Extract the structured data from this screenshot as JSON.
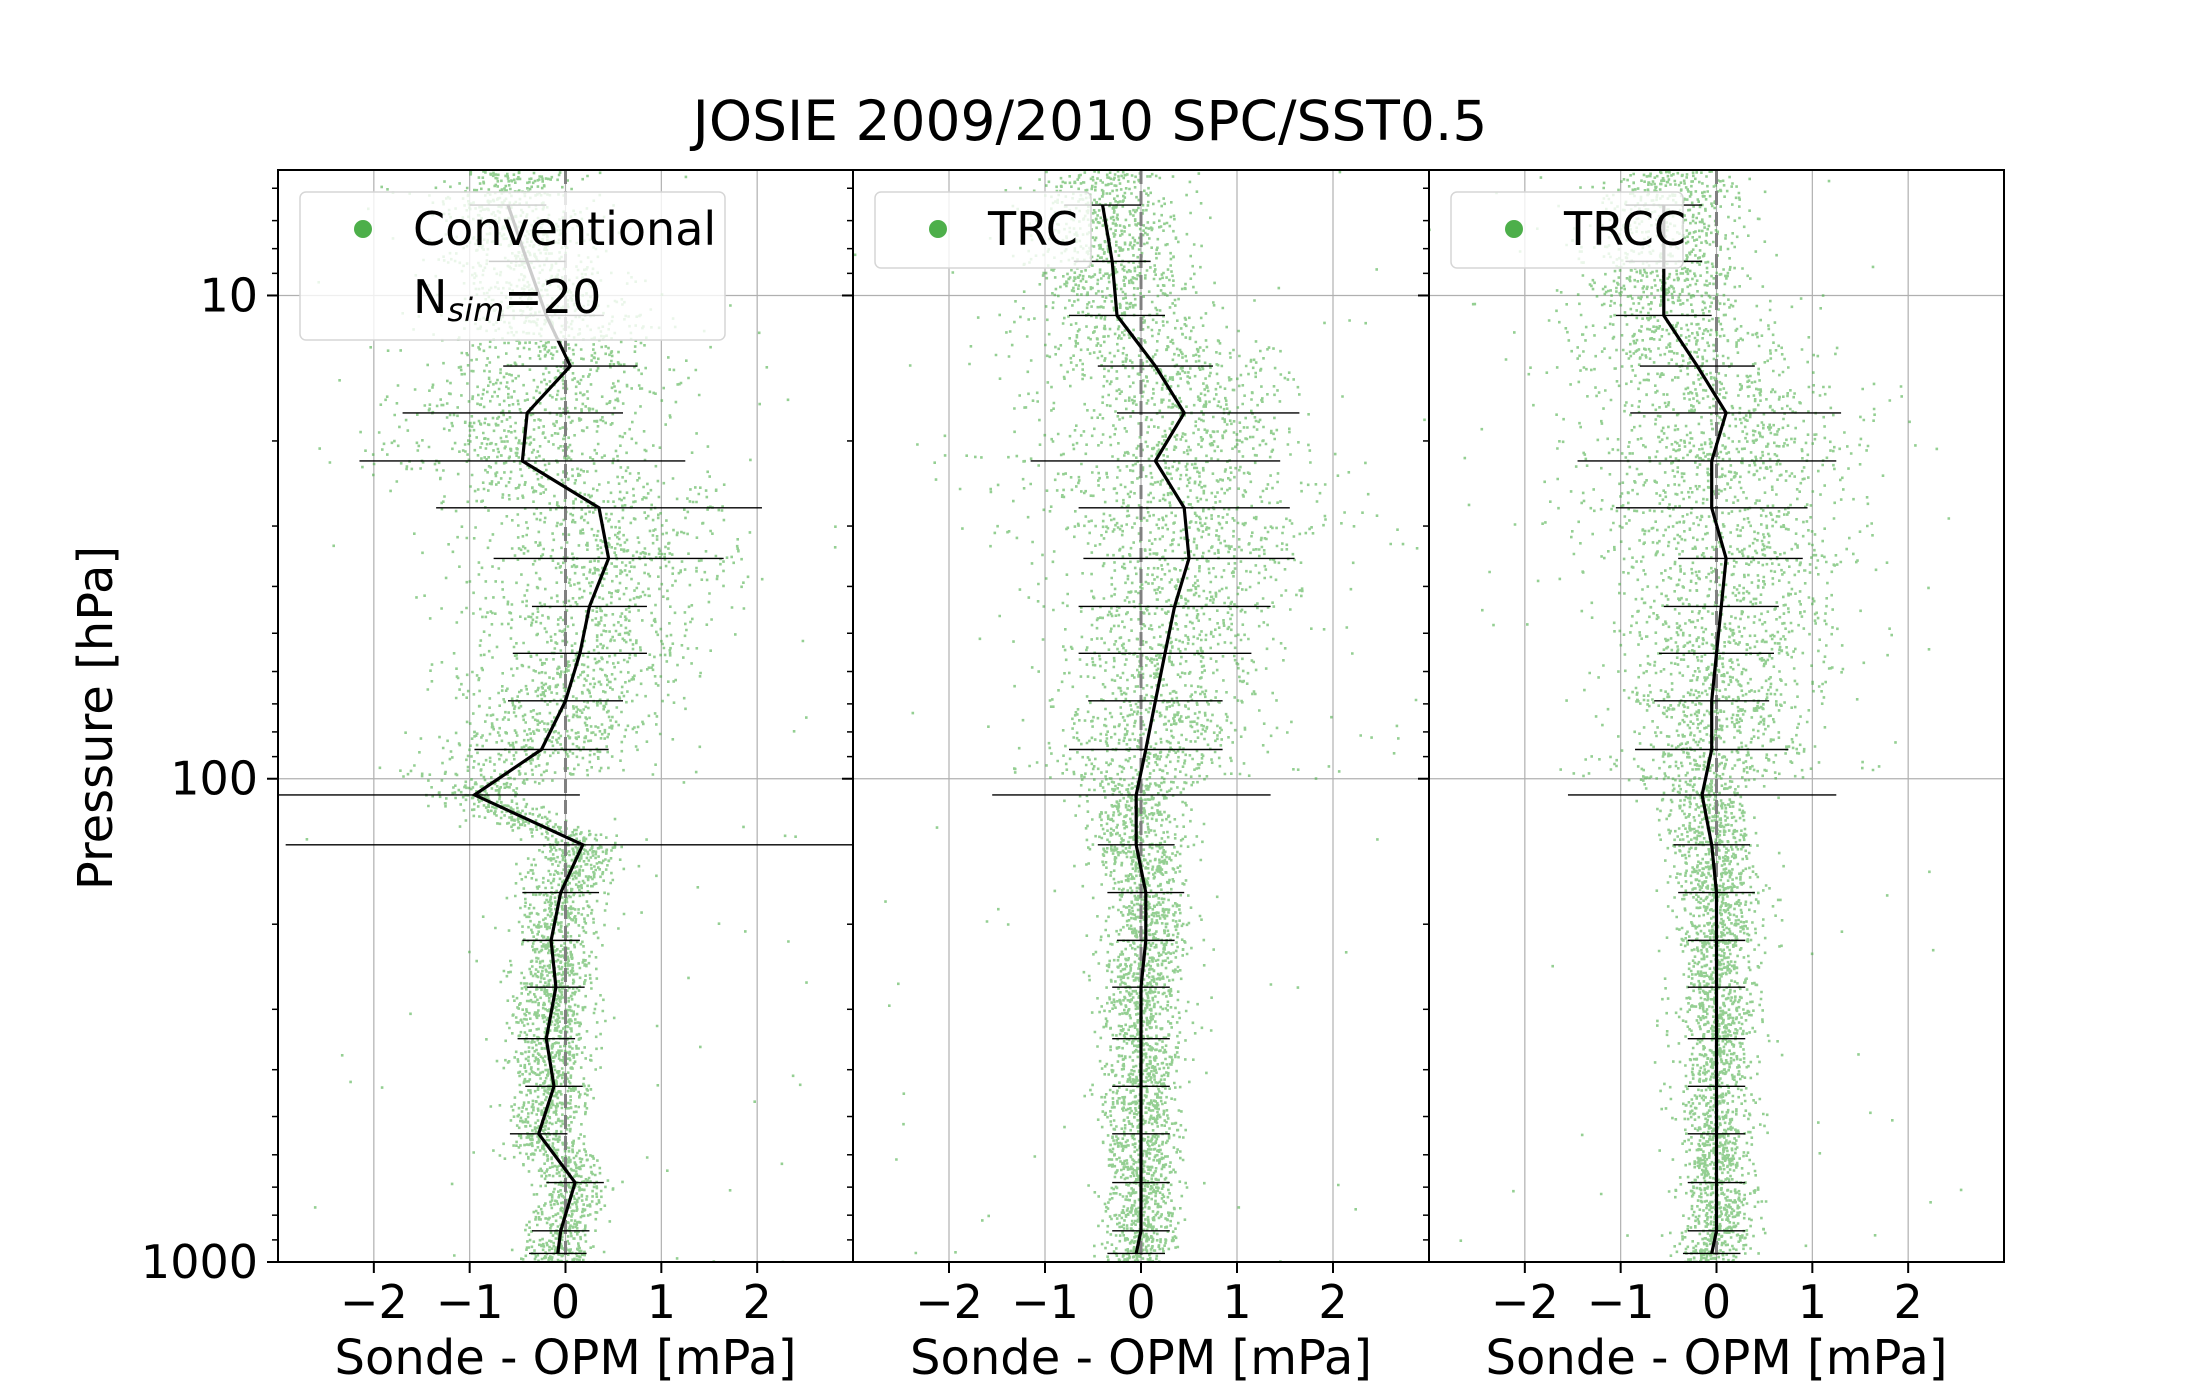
{
  "figure": {
    "title": "JOSIE 2009/2010 SPC/SST0.5",
    "ylabel": "Pressure [hPa]",
    "y_tick_labels": [
      "10",
      "100",
      "1000"
    ]
  },
  "colors": {
    "points": "#4daf4a",
    "mean_line": "#000000",
    "zero_line": "#808080",
    "grid": "#b0b0b0"
  },
  "chart_data": [
    {
      "type": "scatter",
      "panel": "Conventional",
      "legend": {
        "label": "Conventional",
        "extra": "N",
        "extra_sub": "sim",
        "extra_value": "=20",
        "placement": "upper-left"
      },
      "xlabel": "Sonde - OPM [mPa]",
      "x_tick_labels": [
        "−2",
        "−1",
        "0",
        "1",
        "2"
      ],
      "xlim": [
        -3.0,
        3.0
      ],
      "ylim": [
        1000,
        5
      ],
      "yscale": "log",
      "grid": true,
      "mean_profile": {
        "pressure": [
          6.5,
          8.5,
          11,
          14,
          17.5,
          22,
          27.5,
          35,
          44,
          55,
          69,
          87,
          108,
          137,
          172,
          216,
          270,
          345,
          433,
          543,
          685,
          862,
          960
        ],
        "diff": [
          -0.6,
          -0.4,
          -0.2,
          0.05,
          -0.4,
          -0.45,
          0.35,
          0.45,
          0.25,
          0.15,
          0.0,
          -0.25,
          -0.95,
          0.18,
          -0.05,
          -0.15,
          -0.1,
          -0.2,
          -0.12,
          -0.28,
          0.1,
          -0.05,
          -0.08
        ],
        "err_left": [
          0.4,
          0.4,
          0.5,
          0.7,
          1.3,
          1.7,
          1.7,
          1.2,
          0.6,
          0.7,
          0.6,
          0.7,
          2.3,
          3.1,
          0.4,
          0.3,
          0.3,
          0.3,
          0.3,
          0.3,
          0.3,
          0.3,
          0.3
        ],
        "err_right": [
          0.4,
          0.4,
          0.6,
          0.7,
          1.0,
          1.7,
          1.7,
          1.2,
          0.6,
          0.7,
          0.6,
          0.7,
          1.1,
          3.1,
          0.4,
          0.3,
          0.3,
          0.3,
          0.3,
          0.3,
          0.3,
          0.3,
          0.3
        ]
      }
    },
    {
      "type": "scatter",
      "panel": "TRC",
      "legend": {
        "label": "TRC",
        "placement": "upper-left"
      },
      "xlabel": "Sonde - OPM [mPa]",
      "x_tick_labels": [
        "−2",
        "−1",
        "0",
        "1",
        "2"
      ],
      "xlim": [
        -3.0,
        3.0
      ],
      "ylim": [
        1000,
        5
      ],
      "yscale": "log",
      "grid": true,
      "mean_profile": {
        "pressure": [
          6.5,
          8.5,
          11,
          14,
          17.5,
          22,
          27.5,
          35,
          44,
          55,
          69,
          87,
          108,
          137,
          172,
          216,
          270,
          345,
          433,
          543,
          685,
          862,
          960
        ],
        "diff": [
          -0.4,
          -0.3,
          -0.25,
          0.15,
          0.45,
          0.15,
          0.45,
          0.5,
          0.35,
          0.25,
          0.15,
          0.05,
          -0.05,
          -0.05,
          0.05,
          0.05,
          0.0,
          0.0,
          0.0,
          0.0,
          0.0,
          0.0,
          -0.05
        ],
        "err_left": [
          0.4,
          0.4,
          0.5,
          0.6,
          0.7,
          1.3,
          1.1,
          1.1,
          1.0,
          0.9,
          0.7,
          0.8,
          1.5,
          0.4,
          0.4,
          0.3,
          0.3,
          0.3,
          0.3,
          0.3,
          0.3,
          0.3,
          0.3
        ],
        "err_right": [
          0.4,
          0.4,
          0.5,
          0.6,
          1.2,
          1.3,
          1.1,
          1.1,
          1.0,
          0.9,
          0.7,
          0.8,
          1.4,
          0.4,
          0.4,
          0.3,
          0.3,
          0.3,
          0.3,
          0.3,
          0.3,
          0.3,
          0.3
        ]
      }
    },
    {
      "type": "scatter",
      "panel": "TRCC",
      "legend": {
        "label": "TRCC",
        "placement": "upper-left"
      },
      "xlabel": "Sonde - OPM [mPa]",
      "x_tick_labels": [
        "−2",
        "−1",
        "0",
        "1",
        "2"
      ],
      "xlim": [
        -3.0,
        3.0
      ],
      "ylim": [
        1000,
        5
      ],
      "yscale": "log",
      "grid": true,
      "mean_profile": {
        "pressure": [
          6.5,
          8.5,
          11,
          14,
          17.5,
          22,
          27.5,
          35,
          44,
          55,
          69,
          87,
          108,
          137,
          172,
          216,
          270,
          345,
          433,
          543,
          685,
          862,
          960
        ],
        "diff": [
          -0.55,
          -0.55,
          -0.55,
          -0.2,
          0.1,
          -0.05,
          -0.05,
          0.1,
          0.05,
          0.0,
          -0.05,
          -0.05,
          -0.15,
          -0.05,
          0.0,
          0.0,
          0.0,
          0.0,
          0.0,
          0.0,
          0.0,
          0.0,
          -0.05
        ],
        "err_left": [
          0.4,
          0.4,
          0.5,
          0.6,
          1.0,
          1.4,
          1.0,
          0.5,
          0.6,
          0.6,
          0.6,
          0.8,
          1.4,
          0.4,
          0.4,
          0.3,
          0.3,
          0.3,
          0.3,
          0.3,
          0.3,
          0.3,
          0.3
        ],
        "err_right": [
          0.4,
          0.4,
          0.5,
          0.6,
          1.2,
          1.3,
          1.0,
          0.8,
          0.6,
          0.6,
          0.6,
          0.8,
          1.4,
          0.4,
          0.4,
          0.3,
          0.3,
          0.3,
          0.3,
          0.3,
          0.3,
          0.3,
          0.3
        ]
      }
    }
  ]
}
